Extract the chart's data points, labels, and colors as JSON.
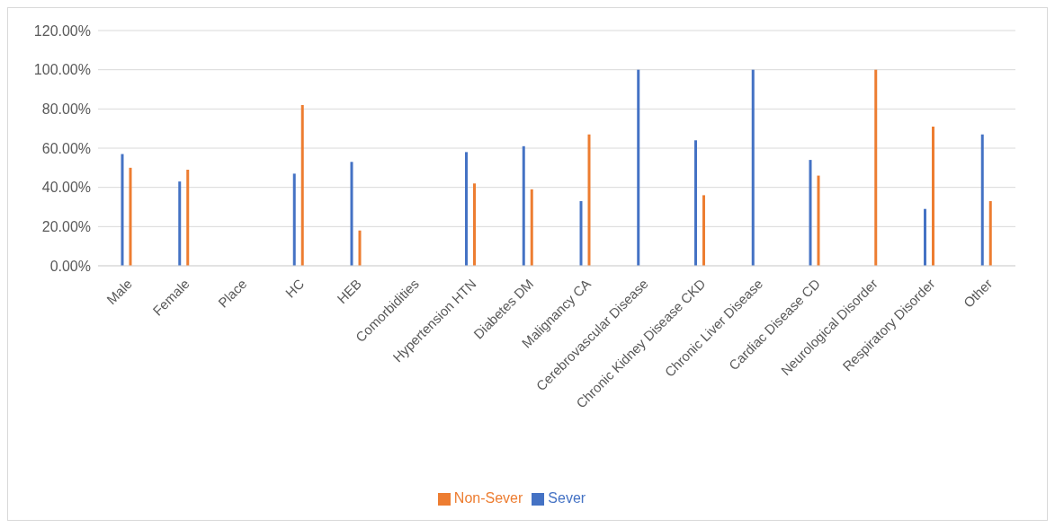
{
  "chart_data": {
    "type": "bar",
    "categories": [
      "Male",
      "Female",
      "Place",
      "HC",
      "HEB",
      "Comorbidities",
      "Hypertension HTN",
      "Diabetes DM",
      "Malignancy CA",
      "Cerebrovascular Disease",
      "Chronic Kidney Disease CKD",
      "Chronic Liver Disease",
      "Cardiac Disease CD",
      "Neurological Disorder",
      "Respiratory Disorder",
      "Other"
    ],
    "series": [
      {
        "name": "Sever",
        "color": "#4472c4",
        "values": [
          57,
          43,
          null,
          47,
          53,
          null,
          58,
          61,
          33,
          100,
          64,
          100,
          54,
          null,
          29,
          67
        ]
      },
      {
        "name": "Non-Sever",
        "color": "#ed7d31",
        "values": [
          50,
          49,
          null,
          82,
          18,
          null,
          42,
          39,
          67,
          null,
          36,
          null,
          46,
          100,
          71,
          33
        ]
      }
    ],
    "ylim": [
      0,
      120
    ],
    "yticks": [
      {
        "value": 0,
        "label": "0.00%"
      },
      {
        "value": 20,
        "label": "20.00%"
      },
      {
        "value": 40,
        "label": "40.00%"
      },
      {
        "value": 60,
        "label": "60.00%"
      },
      {
        "value": 80,
        "label": "80.00%"
      },
      {
        "value": 100,
        "label": "100.00%"
      },
      {
        "value": 120,
        "label": "120.00%"
      }
    ],
    "grid": "y",
    "legend": "bottom"
  }
}
